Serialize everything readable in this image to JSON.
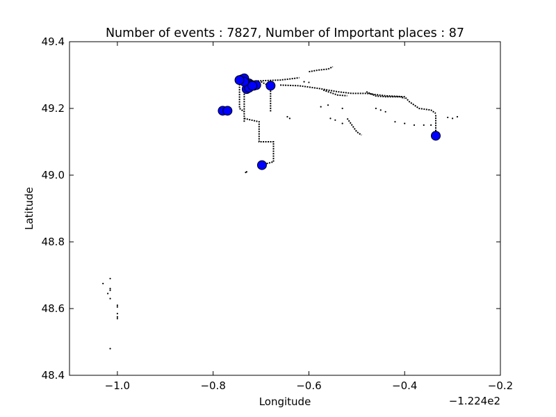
{
  "chart_data": {
    "type": "scatter",
    "title": "Number of events : 7827, Number of Important places : 87",
    "xlabel": "Longitude",
    "ylabel": "Latitude",
    "x_offset_text": "−1.224e2",
    "x_offset_value": -122.4,
    "xlim": [
      -1.1,
      -0.2
    ],
    "ylim": [
      48.4,
      49.4
    ],
    "x_ticks": [
      -1.0,
      -0.8,
      -0.6,
      -0.4,
      -0.2
    ],
    "x_tick_labels": [
      "−1.0",
      "−0.8",
      "−0.6",
      "−0.4",
      "−0.2"
    ],
    "y_ticks": [
      48.4,
      48.6,
      48.8,
      49.0,
      49.2,
      49.4
    ],
    "y_tick_labels": [
      "48.4",
      "48.6",
      "48.8",
      "49.0",
      "49.2",
      "49.4"
    ],
    "grid": false,
    "series": [
      {
        "marker": "small-dot",
        "color": "#000000",
        "tracks": [
          [
            [
              -0.735,
              49.16
            ],
            [
              -0.735,
              49.28
            ],
            [
              -0.7,
              49.283
            ],
            [
              -0.66,
              49.285
            ],
            [
              -0.63,
              49.29
            ],
            [
              -0.62,
              49.292
            ]
          ],
          [
            [
              -0.735,
              49.17
            ],
            [
              -0.72,
              49.165
            ],
            [
              -0.704,
              49.16
            ],
            [
              -0.704,
              49.13
            ],
            [
              -0.704,
              49.1
            ],
            [
              -0.674,
              49.1
            ],
            [
              -0.674,
              49.06
            ],
            [
              -0.674,
              49.04
            ],
            [
              -0.7,
              49.03
            ]
          ],
          [
            [
              -0.66,
              49.27
            ],
            [
              -0.62,
              49.268
            ],
            [
              -0.58,
              49.26
            ],
            [
              -0.54,
              49.25
            ],
            [
              -0.51,
              49.245
            ],
            [
              -0.48,
              49.245
            ],
            [
              -0.44,
              49.238
            ],
            [
              -0.4,
              49.235
            ],
            [
              -0.39,
              49.22
            ],
            [
              -0.37,
              49.2
            ],
            [
              -0.345,
              49.195
            ],
            [
              -0.335,
              49.185
            ]
          ],
          [
            [
              -0.6,
              49.31
            ],
            [
              -0.58,
              49.315
            ],
            [
              -0.56,
              49.318
            ],
            [
              -0.55,
              49.325
            ]
          ],
          [
            [
              -0.57,
              49.255
            ],
            [
              -0.54,
              49.24
            ],
            [
              -0.52,
              49.238
            ]
          ],
          [
            [
              -0.48,
              49.25
            ],
            [
              -0.46,
              49.237
            ],
            [
              -0.44,
              49.235
            ],
            [
              -0.41,
              49.235
            ],
            [
              -0.4,
              49.23
            ]
          ],
          [
            [
              -0.52,
              49.17
            ],
            [
              -0.51,
              49.15
            ],
            [
              -0.5,
              49.13
            ],
            [
              -0.49,
              49.12
            ]
          ],
          [
            [
              -0.335,
              49.18
            ],
            [
              -0.335,
              49.14
            ],
            [
              -0.335,
              49.12
            ]
          ],
          [
            [
              -0.7,
              49.28
            ],
            [
              -0.68,
              49.265
            ],
            [
              -0.68,
              49.235
            ],
            [
              -0.68,
              49.21
            ],
            [
              -0.68,
              49.19
            ]
          ],
          [
            [
              -0.745,
              49.28
            ],
            [
              -0.745,
              49.23
            ],
            [
              -0.745,
              49.2
            ],
            [
              -0.735,
              49.19
            ]
          ]
        ],
        "points": [
          [
            -0.42,
            49.16
          ],
          [
            -0.4,
            49.155
          ],
          [
            -0.38,
            49.15
          ],
          [
            -0.36,
            49.15
          ],
          [
            -0.345,
            49.15
          ],
          [
            -0.3,
            49.17
          ],
          [
            -0.29,
            49.175
          ],
          [
            -0.31,
            49.173
          ],
          [
            -0.46,
            49.2
          ],
          [
            -0.45,
            49.195
          ],
          [
            -0.44,
            49.19
          ],
          [
            -0.64,
            49.17
          ],
          [
            -0.645,
            49.175
          ],
          [
            -0.73,
            49.01
          ],
          [
            -0.732,
            49.008
          ],
          [
            -0.555,
            49.17
          ],
          [
            -0.545,
            49.165
          ],
          [
            -0.53,
            49.155
          ],
          [
            -0.575,
            49.205
          ],
          [
            -0.56,
            49.21
          ],
          [
            -0.53,
            49.2
          ],
          [
            -0.61,
            49.28
          ],
          [
            -0.6,
            49.278
          ],
          [
            -1.03,
            48.675
          ],
          [
            -1.015,
            48.66
          ],
          [
            -1.015,
            48.655
          ],
          [
            -1.02,
            48.645
          ],
          [
            -1.015,
            48.63
          ],
          [
            -1.015,
            48.69
          ],
          [
            -1.0,
            48.61
          ],
          [
            -1.0,
            48.605
          ],
          [
            -1.0,
            48.585
          ],
          [
            -1.0,
            48.575
          ],
          [
            -1.0,
            48.57
          ],
          [
            -1.015,
            48.48
          ]
        ]
      },
      {
        "marker": "large-circle",
        "color": "#0000ff",
        "points": [
          [
            -0.74,
            49.287
          ],
          [
            -0.735,
            49.283
          ],
          [
            -0.735,
            49.29
          ],
          [
            -0.725,
            49.275
          ],
          [
            -0.72,
            49.27
          ],
          [
            -0.715,
            49.268
          ],
          [
            -0.71,
            49.27
          ],
          [
            -0.73,
            49.258
          ],
          [
            -0.725,
            49.262
          ],
          [
            -0.718,
            49.268
          ],
          [
            -0.735,
            49.28
          ],
          [
            -0.745,
            49.285
          ],
          [
            -0.68,
            49.268
          ],
          [
            -0.335,
            49.118
          ],
          [
            -0.78,
            49.193
          ],
          [
            -0.77,
            49.193
          ],
          [
            -0.698,
            49.03
          ]
        ]
      }
    ]
  }
}
